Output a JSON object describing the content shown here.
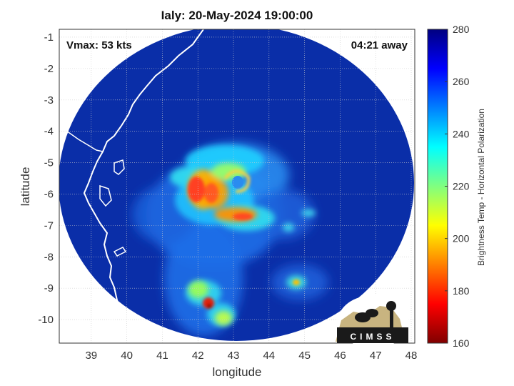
{
  "title": "Ialy: 20-May-2024 19:00:00",
  "vmax_label": "Vmax: 53 kts",
  "away_label": "04:21 away",
  "logo_text": "CIMSS",
  "map": {
    "xlabel": "longitude",
    "ylabel": "latitude",
    "xlim": [
      38.1,
      48.1
    ],
    "ylim": [
      -10.75,
      -0.75
    ],
    "xticks": [
      39,
      40,
      41,
      42,
      43,
      44,
      45,
      46,
      47,
      48
    ],
    "yticks": [
      -1,
      -2,
      -3,
      -4,
      -5,
      -6,
      -7,
      -8,
      -9,
      -10
    ],
    "grid": true,
    "colors": {
      "background": "#0a2ea8",
      "outside": "#ffffff",
      "coastline": "#ffffff"
    }
  },
  "colorbar": {
    "label": "Brightness Temp - Horizontal Polarization",
    "range": [
      160,
      280
    ],
    "ticks": [
      280,
      260,
      240,
      220,
      200,
      180,
      160
    ],
    "colormap": "jet"
  },
  "chart_data": {
    "type": "heatmap",
    "title": "Ialy: 20-May-2024 19:00:00",
    "xlabel": "longitude",
    "ylabel": "latitude",
    "xlim": [
      38.1,
      48.1
    ],
    "ylim": [
      -10.75,
      -0.75
    ],
    "value_label": "Brightness Temp - Horizontal Polarization",
    "value_range": [
      160,
      280
    ],
    "storm": "Ialy",
    "vmax_kts": 53,
    "swath_center": {
      "lon": 43.3,
      "lat": -5.0
    },
    "features": [
      {
        "name": "eye",
        "lon": 43.3,
        "lat": -5.9,
        "value": 260
      },
      {
        "name": "western eyewall",
        "lon": 42.1,
        "lat": -6.0,
        "value": 195
      },
      {
        "name": "southern band",
        "lon": 43.0,
        "lat": -6.9,
        "value": 200
      },
      {
        "name": "southern convection",
        "lon": 42.3,
        "lat": -9.5,
        "value": 180
      },
      {
        "name": "eastern cell",
        "lon": 44.8,
        "lat": -8.8,
        "value": 225
      }
    ]
  }
}
